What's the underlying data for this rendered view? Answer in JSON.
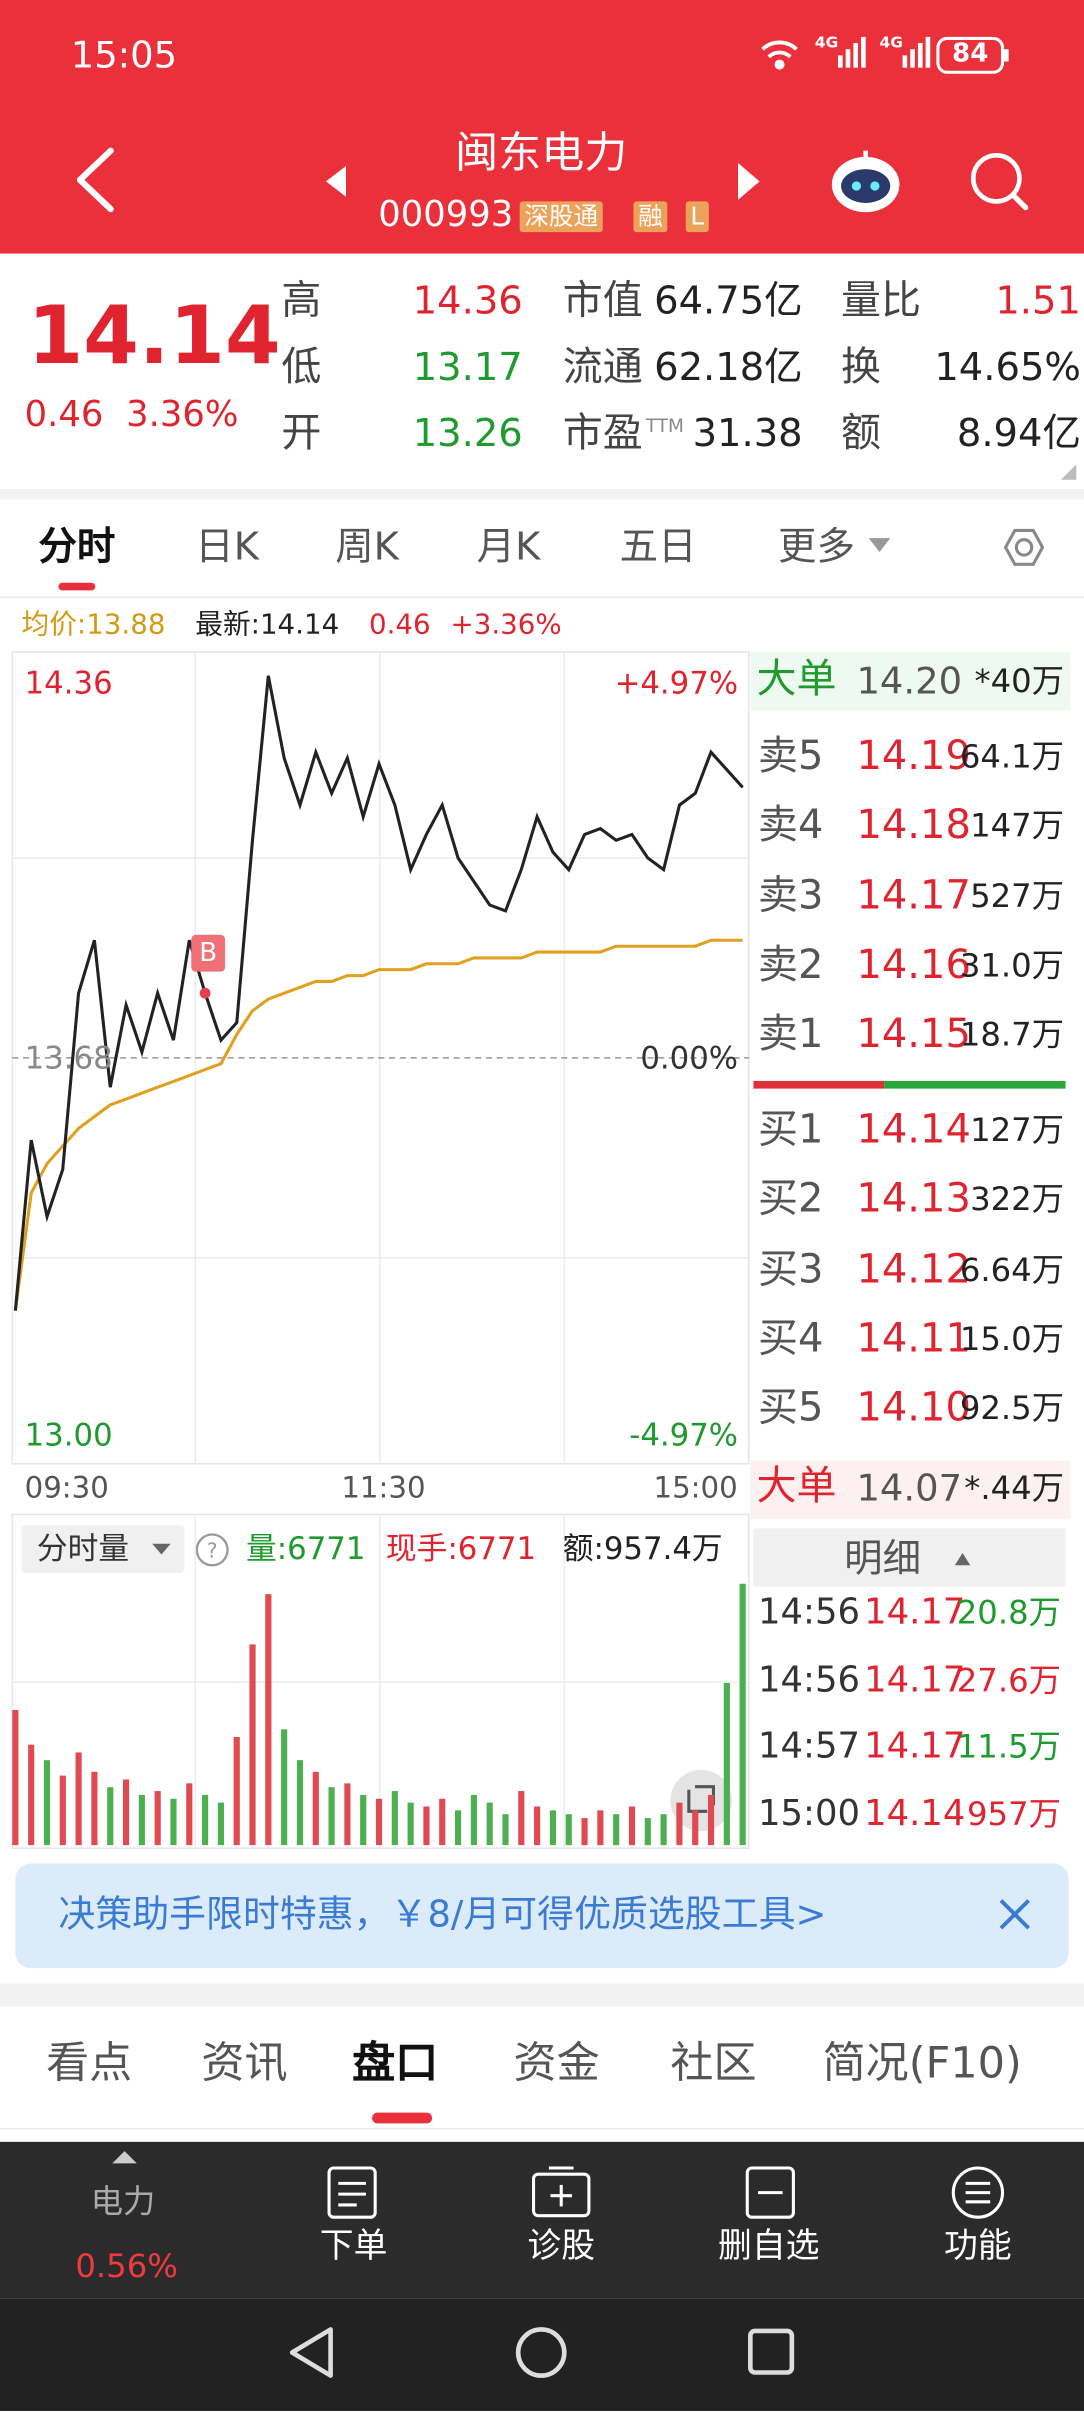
{
  "status_bar": {
    "time": "15:05",
    "network": [
      "4G",
      "4G"
    ],
    "battery": "84"
  },
  "header": {
    "title": "闽东电力",
    "code": "000993",
    "badges": [
      "深股通",
      "融",
      "L"
    ]
  },
  "quote": {
    "price": "14.14",
    "change": "0.46",
    "change_pct": "3.36%",
    "columns": [
      [
        {
          "label": "高",
          "value": "14.36"
        },
        {
          "label": "低",
          "value": "13.17"
        },
        {
          "label": "开",
          "value": "13.26"
        }
      ],
      [
        {
          "label": "市值",
          "value": "64.75亿"
        },
        {
          "label": "流通",
          "value": "62.18亿"
        },
        {
          "label": "市盈",
          "sup": "TTM",
          "value": "31.38"
        }
      ],
      [
        {
          "label": "量比",
          "value": "1.51"
        },
        {
          "label": "换",
          "value": "14.65%"
        },
        {
          "label": "额",
          "value": "8.94亿"
        }
      ]
    ]
  },
  "tabs": [
    "分时",
    "日K",
    "周K",
    "月K",
    "五日",
    "更多"
  ],
  "info": {
    "avg": "均价:13.88",
    "latest": "最新:14.14",
    "change": "0.46",
    "change_pct": "+3.36%"
  },
  "intraday": {
    "price_axis": [
      {
        "value": 14.36,
        "label": "14.36"
      },
      {
        "value": 13.68,
        "label": "13.68"
      },
      {
        "value": 13,
        "label": "13.00"
      }
    ],
    "pct_axis": [
      {
        "value": 4.97,
        "label": "+4.97%"
      },
      {
        "value": 0,
        "label": "0.00%"
      },
      {
        "value": -4.97,
        "label": "-4.97%"
      }
    ],
    "times": [
      "09:30",
      "11:30",
      "15:00"
    ],
    "marker": "B",
    "prices": [
      13.25,
      13.54,
      13.41,
      13.49,
      13.79,
      13.88,
      13.63,
      13.77,
      13.69,
      13.79,
      13.71,
      13.88,
      13.79,
      13.71,
      13.74,
      14.05,
      14.33,
      14.19,
      14.11,
      14.2,
      14.13,
      14.19,
      14.09,
      14.18,
      14.11,
      14.0,
      14.06,
      14.11,
      14.02,
      13.98,
      13.94,
      13.93,
      14.0,
      14.09,
      14.03,
      14.0,
      14.06,
      14.07,
      14.05,
      14.06,
      14.02,
      14.0,
      14.11,
      14.13,
      14.2,
      14.17,
      14.14
    ],
    "avg": [
      13.25,
      13.45,
      13.5,
      13.53,
      13.56,
      13.58,
      13.6,
      13.61,
      13.62,
      13.63,
      13.64,
      13.65,
      13.66,
      13.67,
      13.72,
      13.76,
      13.78,
      13.79,
      13.8,
      13.81,
      13.81,
      13.82,
      13.82,
      13.83,
      13.83,
      13.83,
      13.84,
      13.84,
      13.84,
      13.85,
      13.85,
      13.85,
      13.85,
      13.86,
      13.86,
      13.86,
      13.86,
      13.86,
      13.87,
      13.87,
      13.87,
      13.87,
      13.87,
      13.87,
      13.88,
      13.88,
      13.88
    ],
    "volumes": [
      3500,
      2600,
      2200,
      1800,
      2400,
      1900,
      1500,
      1700,
      1300,
      1400,
      1200,
      1600,
      1300,
      1100,
      2800,
      5200,
      6500,
      3000,
      2200,
      1900,
      1500,
      1600,
      1300,
      1200,
      1400,
      1100,
      1000,
      1200,
      900,
      1300,
      1100,
      800,
      1400,
      1000,
      900,
      800,
      700,
      900,
      800,
      1000,
      700,
      800,
      1100,
      900,
      1300,
      4200,
      6771
    ]
  },
  "volume_panel": {
    "selector": "分时量",
    "volume": "量:6771",
    "current": "现手:6771",
    "amount": "额:957.4万"
  },
  "order_book": {
    "big_top": {
      "label": "大单",
      "price": "14.20",
      "volume": "*40万"
    },
    "asks": [
      {
        "label": "卖5",
        "price": "14.19",
        "volume": "64.1万"
      },
      {
        "label": "卖4",
        "price": "14.18",
        "volume": "147万"
      },
      {
        "label": "卖3",
        "price": "14.17",
        "volume": "527万"
      },
      {
        "label": "卖2",
        "price": "14.16",
        "volume": "31.0万"
      },
      {
        "label": "卖1",
        "price": "14.15",
        "volume": "18.7万"
      }
    ],
    "bids": [
      {
        "label": "买1",
        "price": "14.14",
        "volume": "127万"
      },
      {
        "label": "买2",
        "price": "14.13",
        "volume": "322万"
      },
      {
        "label": "买3",
        "price": "14.12",
        "volume": "6.64万"
      },
      {
        "label": "买4",
        "price": "14.11",
        "volume": "15.0万"
      },
      {
        "label": "买5",
        "price": "14.10",
        "volume": "92.5万"
      }
    ],
    "big_bottom": {
      "label": "大单",
      "price": "14.07",
      "volume": "*.44万"
    },
    "detail_title": "明细",
    "details": [
      {
        "time": "14:56",
        "price": "14.17",
        "amount": "20.8万"
      },
      {
        "time": "14:56",
        "price": "14.17",
        "amount": "27.6万"
      },
      {
        "time": "14:57",
        "price": "14.17",
        "amount": "11.5万"
      },
      {
        "time": "15:00",
        "price": "14.14",
        "amount": "957万"
      }
    ]
  },
  "banner": "决策助手限时特惠，￥8/月可得优质选股工具>",
  "bottom_tabs": [
    "看点",
    "资讯",
    "盘口",
    "资金",
    "社区",
    "简况(F10)"
  ],
  "nav": {
    "sector": "电力",
    "sector_change": "0.56%",
    "items": [
      "下单",
      "诊股",
      "删自选",
      "功能"
    ]
  }
}
